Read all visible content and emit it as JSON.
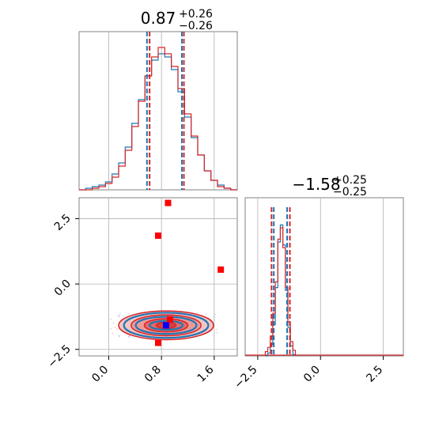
{
  "chart_data": {
    "type": "corner",
    "colors": {
      "blue": "#1f77b4",
      "red": "#d62728",
      "marker_red": "#ff0000",
      "marker_blue": "#0000ff"
    },
    "panels": [
      {
        "name": "hist-param1",
        "type": "histogram",
        "title": {
          "main": "0.87",
          "sup": "+0.26",
          "sub": "−0.26"
        },
        "xlim": [
          -0.45,
          1.95
        ],
        "series": [
          {
            "name": "",
            "color": "#1f77b4",
            "bins": [
              -0.45,
              -0.35,
              -0.25,
              -0.15,
              -0.05,
              0.05,
              0.15,
              0.25,
              0.35,
              0.45,
              0.55,
              0.65,
              0.75,
              0.85,
              0.95,
              1.05,
              1.15,
              1.25,
              1.35,
              1.45,
              1.55,
              1.65,
              1.75,
              1.85,
              1.95
            ],
            "counts": [
              0,
              1,
              2,
              3,
              5,
              10,
              17,
              27,
              42,
              57,
              72,
              82,
              86,
              84,
              76,
              62,
              46,
              33,
              22,
              12,
              6,
              3,
              1,
              0
            ],
            "quantile_lines": [
              0.58,
              1.11
            ]
          },
          {
            "name": "",
            "color": "#d62728",
            "bins": [
              -0.45,
              -0.35,
              -0.25,
              -0.15,
              -0.05,
              0.05,
              0.15,
              0.25,
              0.35,
              0.45,
              0.55,
              0.65,
              0.75,
              0.85,
              0.95,
              1.05,
              1.15,
              1.25,
              1.35,
              1.45,
              1.55,
              1.65,
              1.75,
              1.85,
              1.95
            ],
            "counts": [
              0,
              0,
              1,
              2,
              4,
              8,
              15,
              25,
              40,
              56,
              72,
              84,
              90,
              86,
              78,
              64,
              48,
              34,
              22,
              12,
              6,
              2,
              1,
              0
            ],
            "quantile_lines": [
              0.62,
              1.14
            ]
          }
        ]
      },
      {
        "name": "scatter-param1-param2",
        "type": "scatter+contour",
        "xlim": [
          -0.45,
          1.95
        ],
        "ylim": [
          -2.75,
          3.3
        ],
        "contours": [
          {
            "color": "#d62728",
            "center": [
              0.87,
              -1.58
            ],
            "radii": [
              [
                0.72,
                0.55
              ],
              [
                0.53,
                0.4
              ],
              [
                0.33,
                0.25
              ],
              [
                0.15,
                0.12
              ]
            ]
          },
          {
            "color": "#1f77b4",
            "center": [
              0.87,
              -1.58
            ],
            "radii": [
              [
                0.64,
                0.48
              ],
              [
                0.46,
                0.33
              ],
              [
                0.25,
                0.17
              ]
            ]
          }
        ],
        "markers": [
          {
            "color": "#ff0000",
            "x": 0.75,
            "y": 1.85
          },
          {
            "color": "#ff0000",
            "x": 0.9,
            "y": 3.1
          },
          {
            "color": "#ff0000",
            "x": 1.7,
            "y": 0.55
          },
          {
            "color": "#ff0000",
            "x": 0.75,
            "y": -2.25
          },
          {
            "color": "#ff0000",
            "x": 0.93,
            "y": -1.35
          },
          {
            "color": "#0000ff",
            "x": 0.87,
            "y": -1.58
          }
        ],
        "xticks": [
          0.0,
          0.8,
          1.6
        ],
        "xticklabels": [
          "0.0",
          "0.8",
          "1.6"
        ],
        "yticks": [
          2.5,
          0.0,
          -2.5
        ],
        "yticklabels": [
          "2.5",
          "0.0",
          "−2.5"
        ]
      },
      {
        "name": "hist-param2",
        "type": "histogram",
        "title": {
          "main": "−1.58",
          "sup": "+0.25",
          "sub": "−0.25"
        },
        "xlim": [
          -3.0,
          3.3
        ],
        "series": [
          {
            "name": "",
            "color": "#1f77b4",
            "bins": [
              -2.2,
              -2.1,
              -2.0,
              -1.9,
              -1.8,
              -1.7,
              -1.6,
              -1.5,
              -1.4,
              -1.3,
              -1.2,
              -1.1,
              -1.0
            ],
            "counts": [
              0,
              2,
              8,
              22,
              48,
              80,
              92,
              78,
              46,
              20,
              7,
              1
            ],
            "quantile_lines": [
              -1.86,
              -1.33
            ]
          },
          {
            "name": "",
            "color": "#d62728",
            "bins": [
              -2.2,
              -2.1,
              -2.0,
              -1.9,
              -1.8,
              -1.7,
              -1.6,
              -1.5,
              -1.4,
              -1.3,
              -1.2,
              -1.1,
              -1.0
            ],
            "counts": [
              3,
              6,
              14,
              30,
              52,
              82,
              90,
              76,
              48,
              24,
              10,
              4
            ],
            "quantile_lines": [
              -1.95,
              -1.22
            ]
          }
        ],
        "xticks": [
          -2.5,
          0.0,
          2.5
        ],
        "xticklabels": [
          "−2.5",
          "0.0",
          "2.5"
        ]
      }
    ]
  }
}
